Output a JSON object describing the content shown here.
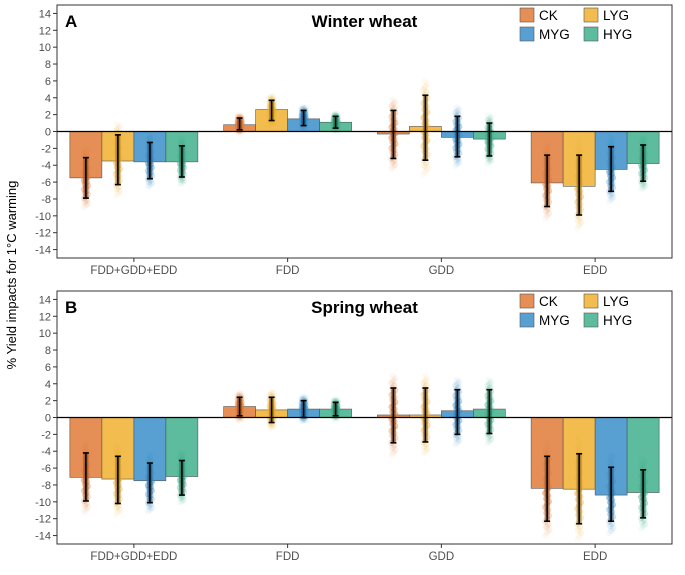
{
  "ylabel": "% Yield impacts for 1°C warming",
  "series_colors": {
    "CK": "#e07b39",
    "LYG": "#f0b030",
    "MYG": "#3b8fc9",
    "HYG": "#3fb08c"
  },
  "chart_data": [
    {
      "type": "bar",
      "panel": "A",
      "title": "Winter wheat",
      "categories": [
        "FDD+GDD+EDD",
        "FDD",
        "GDD",
        "EDD"
      ],
      "ylim": [
        -15,
        15
      ],
      "yticks": [
        -14,
        -12,
        -10,
        -8,
        -6,
        -4,
        -2,
        0,
        2,
        4,
        6,
        8,
        10,
        12,
        14
      ],
      "grid": false,
      "legend_position": "top-right",
      "series": [
        {
          "name": "CK",
          "values": [
            -5.5,
            0.8,
            -0.3,
            -6.1
          ],
          "error_low": [
            -7.9,
            0.2,
            -3.2,
            -8.9
          ],
          "error_high": [
            -3.1,
            1.6,
            2.5,
            -2.8
          ]
        },
        {
          "name": "LYG",
          "values": [
            -3.5,
            2.6,
            0.6,
            -6.5
          ],
          "error_low": [
            -6.3,
            1.3,
            -3.4,
            -9.9
          ],
          "error_high": [
            -0.4,
            3.7,
            4.3,
            -2.8
          ]
        },
        {
          "name": "MYG",
          "values": [
            -3.6,
            1.5,
            -0.7,
            -4.5
          ],
          "error_low": [
            -5.6,
            0.7,
            -3.0,
            -7.1
          ],
          "error_high": [
            -1.3,
            2.5,
            1.8,
            -1.8
          ]
        },
        {
          "name": "HYG",
          "values": [
            -3.6,
            1.1,
            -0.9,
            -3.8
          ],
          "error_low": [
            -5.4,
            0.4,
            -2.9,
            -5.9
          ],
          "error_high": [
            -1.7,
            1.8,
            1.0,
            -1.6
          ]
        }
      ]
    },
    {
      "type": "bar",
      "panel": "B",
      "title": "Spring wheat",
      "categories": [
        "FDD+GDD+EDD",
        "FDD",
        "GDD",
        "EDD"
      ],
      "ylim": [
        -15,
        15
      ],
      "yticks": [
        -14,
        -12,
        -10,
        -8,
        -6,
        -4,
        -2,
        0,
        2,
        4,
        6,
        8,
        10,
        12,
        14
      ],
      "grid": false,
      "legend_position": "top-right",
      "series": [
        {
          "name": "CK",
          "values": [
            -7.1,
            1.3,
            0.3,
            -8.4
          ],
          "error_low": [
            -9.9,
            0.2,
            -3.0,
            -12.3
          ],
          "error_high": [
            -4.2,
            2.4,
            3.5,
            -4.6
          ]
        },
        {
          "name": "LYG",
          "values": [
            -7.3,
            0.9,
            0.3,
            -8.5
          ],
          "error_low": [
            -10.2,
            -0.6,
            -2.9,
            -12.6
          ],
          "error_high": [
            -4.6,
            2.4,
            3.5,
            -4.3
          ]
        },
        {
          "name": "MYG",
          "values": [
            -7.5,
            1.0,
            0.8,
            -9.2
          ],
          "error_low": [
            -10.1,
            0.0,
            -2.0,
            -12.3
          ],
          "error_high": [
            -5.4,
            2.0,
            3.3,
            -5.9
          ]
        },
        {
          "name": "HYG",
          "values": [
            -7.0,
            1.0,
            1.0,
            -8.9
          ],
          "error_low": [
            -9.2,
            0.2,
            -1.9,
            -11.9
          ],
          "error_high": [
            -5.1,
            1.8,
            3.3,
            -6.2
          ]
        }
      ]
    }
  ]
}
